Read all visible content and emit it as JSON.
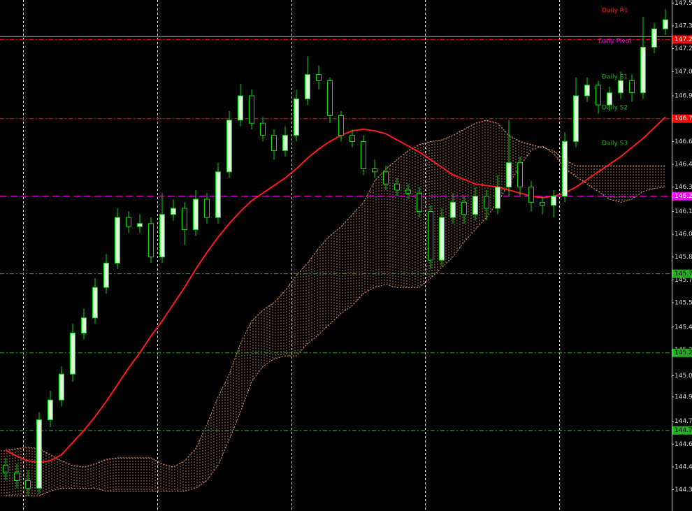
{
  "chart_data": {
    "type": "candlestick",
    "ylim": [
      144.15,
      147.51
    ],
    "yticks": [
      {
        "value": 147.49,
        "label": "147.5"
      },
      {
        "value": 147.34,
        "label": "147.3"
      },
      {
        "value": 147.19,
        "label": "147.2"
      },
      {
        "value": 147.04,
        "label": "147.0"
      },
      {
        "value": 146.88,
        "label": "146.9"
      },
      {
        "value": 146.73,
        "label": "146.7"
      },
      {
        "value": 146.58,
        "label": "146.6"
      },
      {
        "value": 146.43,
        "label": "146.4"
      },
      {
        "value": 146.28,
        "label": "146.3"
      },
      {
        "value": 146.12,
        "label": "146.1"
      },
      {
        "value": 145.97,
        "label": "146.0"
      },
      {
        "value": 145.82,
        "label": "145.8"
      },
      {
        "value": 145.67,
        "label": "145.7"
      },
      {
        "value": 145.52,
        "label": "145.5"
      },
      {
        "value": 145.36,
        "label": "145.4"
      },
      {
        "value": 145.21,
        "label": "145.2"
      },
      {
        "value": 145.04,
        "label": "145.0"
      },
      {
        "value": 144.9,
        "label": "144.9"
      },
      {
        "value": 144.74,
        "label": "144.7"
      },
      {
        "value": 144.59,
        "label": "144.6"
      },
      {
        "value": 144.44,
        "label": "144.4"
      },
      {
        "value": 144.29,
        "label": "144.3"
      }
    ],
    "up_color": "#d8ffd8",
    "down_color": "#000000",
    "wick_color": "#00e000",
    "open": [
      144.45,
      144.4,
      144.35,
      144.3,
      144.75,
      144.88,
      145.05,
      145.32,
      145.42,
      145.62,
      145.78,
      146.08,
      146.02,
      146.04,
      145.82,
      146.1,
      146.14,
      146.0,
      146.2,
      146.08,
      146.38,
      146.72,
      146.88,
      146.7,
      146.62,
      146.52,
      146.62,
      146.86,
      147.02,
      146.98,
      146.75,
      146.62,
      146.58,
      146.4,
      146.38,
      146.3,
      146.26,
      146.24,
      146.12,
      145.8,
      146.08,
      146.18,
      146.1,
      146.22,
      146.14,
      146.28,
      146.44,
      146.28,
      146.18,
      146.16,
      146.22,
      146.58,
      146.88,
      146.95,
      146.82,
      146.9,
      146.98,
      146.9,
      147.2,
      147.32
    ],
    "high": [
      144.5,
      144.46,
      144.42,
      144.8,
      144.94,
      145.1,
      145.38,
      145.48,
      145.68,
      145.84,
      146.14,
      146.12,
      146.1,
      146.08,
      146.24,
      146.2,
      146.18,
      146.26,
      146.24,
      146.44,
      146.78,
      146.96,
      146.92,
      146.74,
      146.66,
      146.68,
      146.92,
      147.14,
      147.08,
      147.0,
      146.78,
      146.66,
      146.62,
      146.46,
      146.42,
      146.34,
      146.3,
      146.28,
      146.16,
      146.14,
      146.24,
      146.22,
      146.28,
      146.26,
      146.36,
      146.72,
      146.48,
      146.32,
      146.22,
      146.26,
      146.64,
      147.0,
      147.0,
      146.98,
      146.94,
      147.04,
      147.02,
      147.4,
      147.36,
      147.45
    ],
    "low": [
      144.35,
      144.3,
      144.25,
      144.26,
      144.7,
      144.84,
      145.0,
      145.28,
      145.38,
      145.58,
      145.74,
      145.98,
      145.98,
      145.78,
      145.78,
      146.06,
      145.9,
      145.96,
      146.04,
      146.04,
      146.34,
      146.68,
      146.66,
      146.58,
      146.46,
      146.48,
      146.58,
      146.82,
      146.92,
      146.7,
      146.58,
      146.54,
      146.36,
      146.34,
      146.26,
      146.22,
      146.2,
      146.08,
      145.74,
      145.76,
      146.04,
      146.04,
      146.06,
      146.06,
      146.1,
      146.22,
      146.22,
      146.12,
      146.1,
      146.08,
      146.18,
      146.54,
      146.84,
      146.76,
      146.78,
      146.86,
      146.84,
      146.86,
      147.16,
      147.28
    ],
    "close": [
      144.4,
      144.35,
      144.3,
      144.75,
      144.88,
      145.05,
      145.32,
      145.42,
      145.62,
      145.78,
      146.08,
      146.02,
      146.04,
      145.82,
      146.1,
      146.14,
      146.0,
      146.2,
      146.08,
      146.38,
      146.72,
      146.88,
      146.7,
      146.62,
      146.52,
      146.62,
      146.86,
      147.02,
      146.98,
      146.75,
      146.62,
      146.58,
      146.4,
      146.38,
      146.3,
      146.26,
      146.24,
      146.12,
      145.8,
      146.08,
      146.18,
      146.1,
      146.22,
      146.14,
      146.28,
      146.44,
      146.28,
      146.18,
      146.16,
      146.22,
      146.58,
      146.88,
      146.95,
      146.82,
      146.9,
      146.98,
      146.9,
      147.2,
      147.32,
      147.38
    ],
    "moving_average": {
      "color": "#ff1a1a",
      "values": [
        144.55,
        144.51,
        144.48,
        144.47,
        144.48,
        144.52,
        144.6,
        144.68,
        144.77,
        144.87,
        144.98,
        145.09,
        145.19,
        145.3,
        145.4,
        145.51,
        145.62,
        145.74,
        145.85,
        145.95,
        146.04,
        146.12,
        146.19,
        146.24,
        146.29,
        146.34,
        146.4,
        146.47,
        146.53,
        146.58,
        146.62,
        146.65,
        146.66,
        146.65,
        146.63,
        146.59,
        146.55,
        146.51,
        146.46,
        146.41,
        146.36,
        146.33,
        146.3,
        146.29,
        146.28,
        146.26,
        146.24,
        146.22,
        146.21,
        146.22,
        146.24,
        146.28,
        146.33,
        146.38,
        146.43,
        146.48,
        146.54,
        146.6,
        146.67,
        146.74
      ]
    },
    "cloud": {
      "color": "#e89a60",
      "span_a": [
        144.55,
        144.56,
        144.57,
        144.56,
        144.52,
        144.48,
        144.45,
        144.44,
        144.46,
        144.49,
        144.5,
        144.5,
        144.5,
        144.5,
        144.46,
        144.44,
        144.48,
        144.56,
        144.72,
        144.9,
        145.05,
        145.25,
        145.4,
        145.47,
        145.52,
        145.6,
        145.7,
        145.78,
        145.88,
        145.96,
        146.02,
        146.1,
        146.18,
        146.32,
        146.4,
        146.46,
        146.52,
        146.56,
        146.58,
        146.59,
        146.62,
        146.66,
        146.7,
        146.72,
        146.7,
        146.62,
        146.58,
        146.56,
        146.54,
        146.52,
        146.46,
        146.42,
        146.42,
        146.42,
        146.42,
        146.42,
        146.42,
        146.42,
        146.42,
        146.42
      ],
      "span_b": [
        144.25,
        144.25,
        144.25,
        144.25,
        144.28,
        144.3,
        144.3,
        144.3,
        144.3,
        144.28,
        144.28,
        144.28,
        144.28,
        144.28,
        144.28,
        144.28,
        144.28,
        144.3,
        144.35,
        144.45,
        144.62,
        144.8,
        145.0,
        145.1,
        145.15,
        145.17,
        145.17,
        145.25,
        145.31,
        145.38,
        145.45,
        145.5,
        145.58,
        145.62,
        145.64,
        145.62,
        145.62,
        145.62,
        145.68,
        145.75,
        145.82,
        145.92,
        146.0,
        146.08,
        146.18,
        146.3,
        146.42,
        146.52,
        146.55,
        146.5,
        146.4,
        146.35,
        146.3,
        146.25,
        146.2,
        146.18,
        146.2,
        146.25,
        146.27,
        146.28
      ]
    },
    "price_line": {
      "value": 147.27,
      "color": "#9a9a9a"
    },
    "levels": [
      {
        "value": 147.25,
        "label": "147.2",
        "color": "#ff0000",
        "text_color": "#ffffff",
        "dash": "6 3 2 3"
      },
      {
        "value": 146.73,
        "label": "146.7",
        "color": "#ff0000",
        "text_color": "#ffffff",
        "dash": "6 3 2 3"
      },
      {
        "value": 146.22,
        "label": "146.2",
        "color": "#ff00ff",
        "text_color": "#ffffff",
        "dash": "10 5"
      },
      {
        "value": 145.71,
        "label": "145.7",
        "color": "#22b022",
        "text_color": "#000000",
        "dash": "6 3 2 3"
      },
      {
        "value": 145.19,
        "label": "145.2",
        "color": "#22b022",
        "text_color": "#000000",
        "dash": "6 3 2 3"
      },
      {
        "value": 144.68,
        "label": "144.7",
        "color": "#22b022",
        "text_color": "#000000",
        "dash": "6 3 2 3"
      }
    ],
    "annotations": [
      {
        "text": "Daily R1",
        "color": "#ff2020"
      },
      {
        "text": "Daily Pivot",
        "color": "#ff00ff"
      },
      {
        "text": "Daily S1",
        "color": "#22b022"
      },
      {
        "text": "Daily S2",
        "color": "#22b022"
      },
      {
        "text": "Daily S3",
        "color": "#22b022"
      }
    ]
  }
}
